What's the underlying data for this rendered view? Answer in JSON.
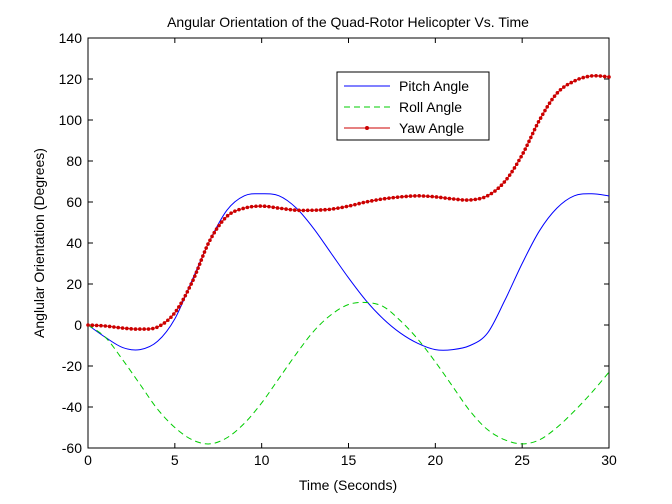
{
  "chart_data": {
    "type": "line",
    "title": "Angular Orientation of the Quad-Rotor Helicopter Vs. Time",
    "xlabel": "Time (Seconds)",
    "ylabel": "Anglular Orientation (Degrees)",
    "xlim": [
      0,
      30
    ],
    "ylim": [
      -60,
      140
    ],
    "xticks": [
      0,
      5,
      10,
      15,
      20,
      25,
      30
    ],
    "yticks": [
      -60,
      -40,
      -20,
      0,
      20,
      40,
      60,
      80,
      100,
      120,
      140
    ],
    "grid": false,
    "legend_position": "top-right",
    "series": [
      {
        "name": "Pitch Angle",
        "color": "#0000ff",
        "style": "solid",
        "x": [
          0,
          1,
          2,
          3,
          4,
          5,
          6,
          7,
          8,
          9,
          10,
          11,
          12,
          13,
          14,
          15,
          16,
          17,
          18,
          19,
          20,
          21,
          22,
          23,
          24,
          25,
          26,
          27,
          28,
          29,
          30
        ],
        "values": [
          0,
          -6,
          -11,
          -12,
          -8,
          3,
          22,
          41,
          56,
          63,
          64,
          63,
          57,
          47,
          35,
          23,
          12,
          3,
          -4,
          -9,
          -12,
          -12,
          -10,
          -4,
          12,
          30,
          46,
          57,
          63,
          64,
          63
        ]
      },
      {
        "name": "Roll Angle",
        "color": "#00cc00",
        "style": "dashed",
        "x": [
          0,
          1,
          2,
          3,
          4,
          5,
          6,
          7,
          8,
          9,
          10,
          11,
          12,
          13,
          14,
          15,
          16,
          17,
          18,
          19,
          20,
          21,
          22,
          23,
          24,
          25,
          26,
          27,
          28,
          29,
          30
        ],
        "values": [
          0,
          -6,
          -17,
          -29,
          -41,
          -50,
          -56,
          -58,
          -55,
          -48,
          -38,
          -26,
          -14,
          -3,
          5,
          10,
          11,
          9,
          2,
          -7,
          -18,
          -30,
          -42,
          -51,
          -56,
          -58,
          -56,
          -50,
          -42,
          -33,
          -23
        ]
      },
      {
        "name": "Yaw Angle",
        "color": "#cc0000",
        "style": "solid-marker",
        "x": [
          0,
          1,
          2,
          3,
          4,
          5,
          6,
          7,
          8,
          9,
          10,
          11,
          12,
          13,
          14,
          15,
          16,
          17,
          18,
          19,
          20,
          21,
          22,
          23,
          24,
          25,
          26,
          27,
          28,
          29,
          30
        ],
        "values": [
          0,
          -0.5,
          -1.5,
          -2,
          -1,
          6,
          21,
          41,
          53,
          57,
          58,
          57,
          56,
          56,
          56.5,
          58,
          60,
          61.5,
          62.5,
          63,
          62.5,
          61.5,
          61,
          63,
          70,
          83,
          100,
          113,
          119,
          121.5,
          121
        ]
      }
    ]
  }
}
